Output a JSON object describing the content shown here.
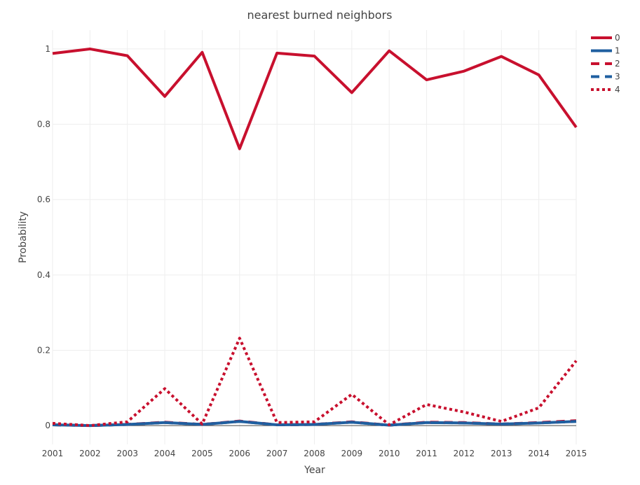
{
  "chart_data": {
    "type": "line",
    "title": "nearest burned neighbors",
    "xlabel": "Year",
    "ylabel": "Probability",
    "x": [
      2001,
      2002,
      2003,
      2004,
      2005,
      2006,
      2007,
      2008,
      2009,
      2010,
      2011,
      2012,
      2013,
      2014,
      2015
    ],
    "xlim": [
      2001,
      2015
    ],
    "ylim": [
      -0.05,
      1.05
    ],
    "yticks": [
      0,
      0.2,
      0.4,
      0.6,
      0.8,
      1
    ],
    "ytick_labels": [
      "0",
      "0.2",
      "0.4",
      "0.6",
      "0.8",
      "1"
    ],
    "grid": true,
    "legend_position": "top-right",
    "series": [
      {
        "name": "0",
        "color": "#c8102e",
        "dash": "solid",
        "values": [
          0.988,
          1.0,
          0.982,
          0.874,
          0.991,
          0.735,
          0.989,
          0.981,
          0.884,
          0.995,
          0.918,
          0.941,
          0.98,
          0.931,
          0.792
        ]
      },
      {
        "name": "1",
        "color": "#1f5fa0",
        "dash": "solid",
        "values": [
          0.002,
          0.0,
          0.003,
          0.008,
          0.003,
          0.011,
          0.002,
          0.003,
          0.009,
          0.001,
          0.008,
          0.007,
          0.004,
          0.007,
          0.011
        ]
      },
      {
        "name": "2",
        "color": "#c8102e",
        "dash": "dash",
        "values": [
          0.002,
          0.0,
          0.003,
          0.009,
          0.003,
          0.012,
          0.002,
          0.003,
          0.01,
          0.001,
          0.009,
          0.008,
          0.004,
          0.008,
          0.013
        ]
      },
      {
        "name": "3",
        "color": "#1f5fa0",
        "dash": "dash",
        "values": [
          0.002,
          0.0,
          0.003,
          0.008,
          0.003,
          0.011,
          0.002,
          0.003,
          0.009,
          0.001,
          0.008,
          0.007,
          0.004,
          0.007,
          0.011
        ]
      },
      {
        "name": "4",
        "color": "#c8102e",
        "dash": "dot",
        "values": [
          0.006,
          0.0,
          0.01,
          0.098,
          0.004,
          0.232,
          0.008,
          0.01,
          0.083,
          0.002,
          0.056,
          0.036,
          0.011,
          0.047,
          0.172
        ]
      }
    ]
  }
}
